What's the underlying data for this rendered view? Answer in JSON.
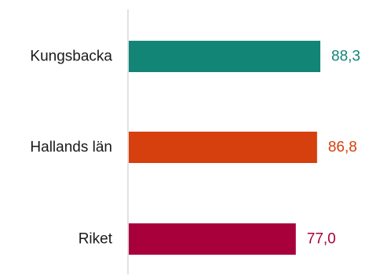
{
  "chart_data": {
    "type": "bar",
    "orientation": "horizontal",
    "categories": [
      "Kungsbacka",
      "Hallands län",
      "Riket"
    ],
    "values": [
      88.3,
      86.8,
      77.0
    ],
    "value_labels": [
      "88,3",
      "86,8",
      "77,0"
    ],
    "colors": [
      "#138577",
      "#d6400e",
      "#a8003b"
    ],
    "title": "",
    "xlabel": "",
    "ylabel": "",
    "xlim": [
      0,
      100
    ],
    "grid": false,
    "legend": "none"
  }
}
